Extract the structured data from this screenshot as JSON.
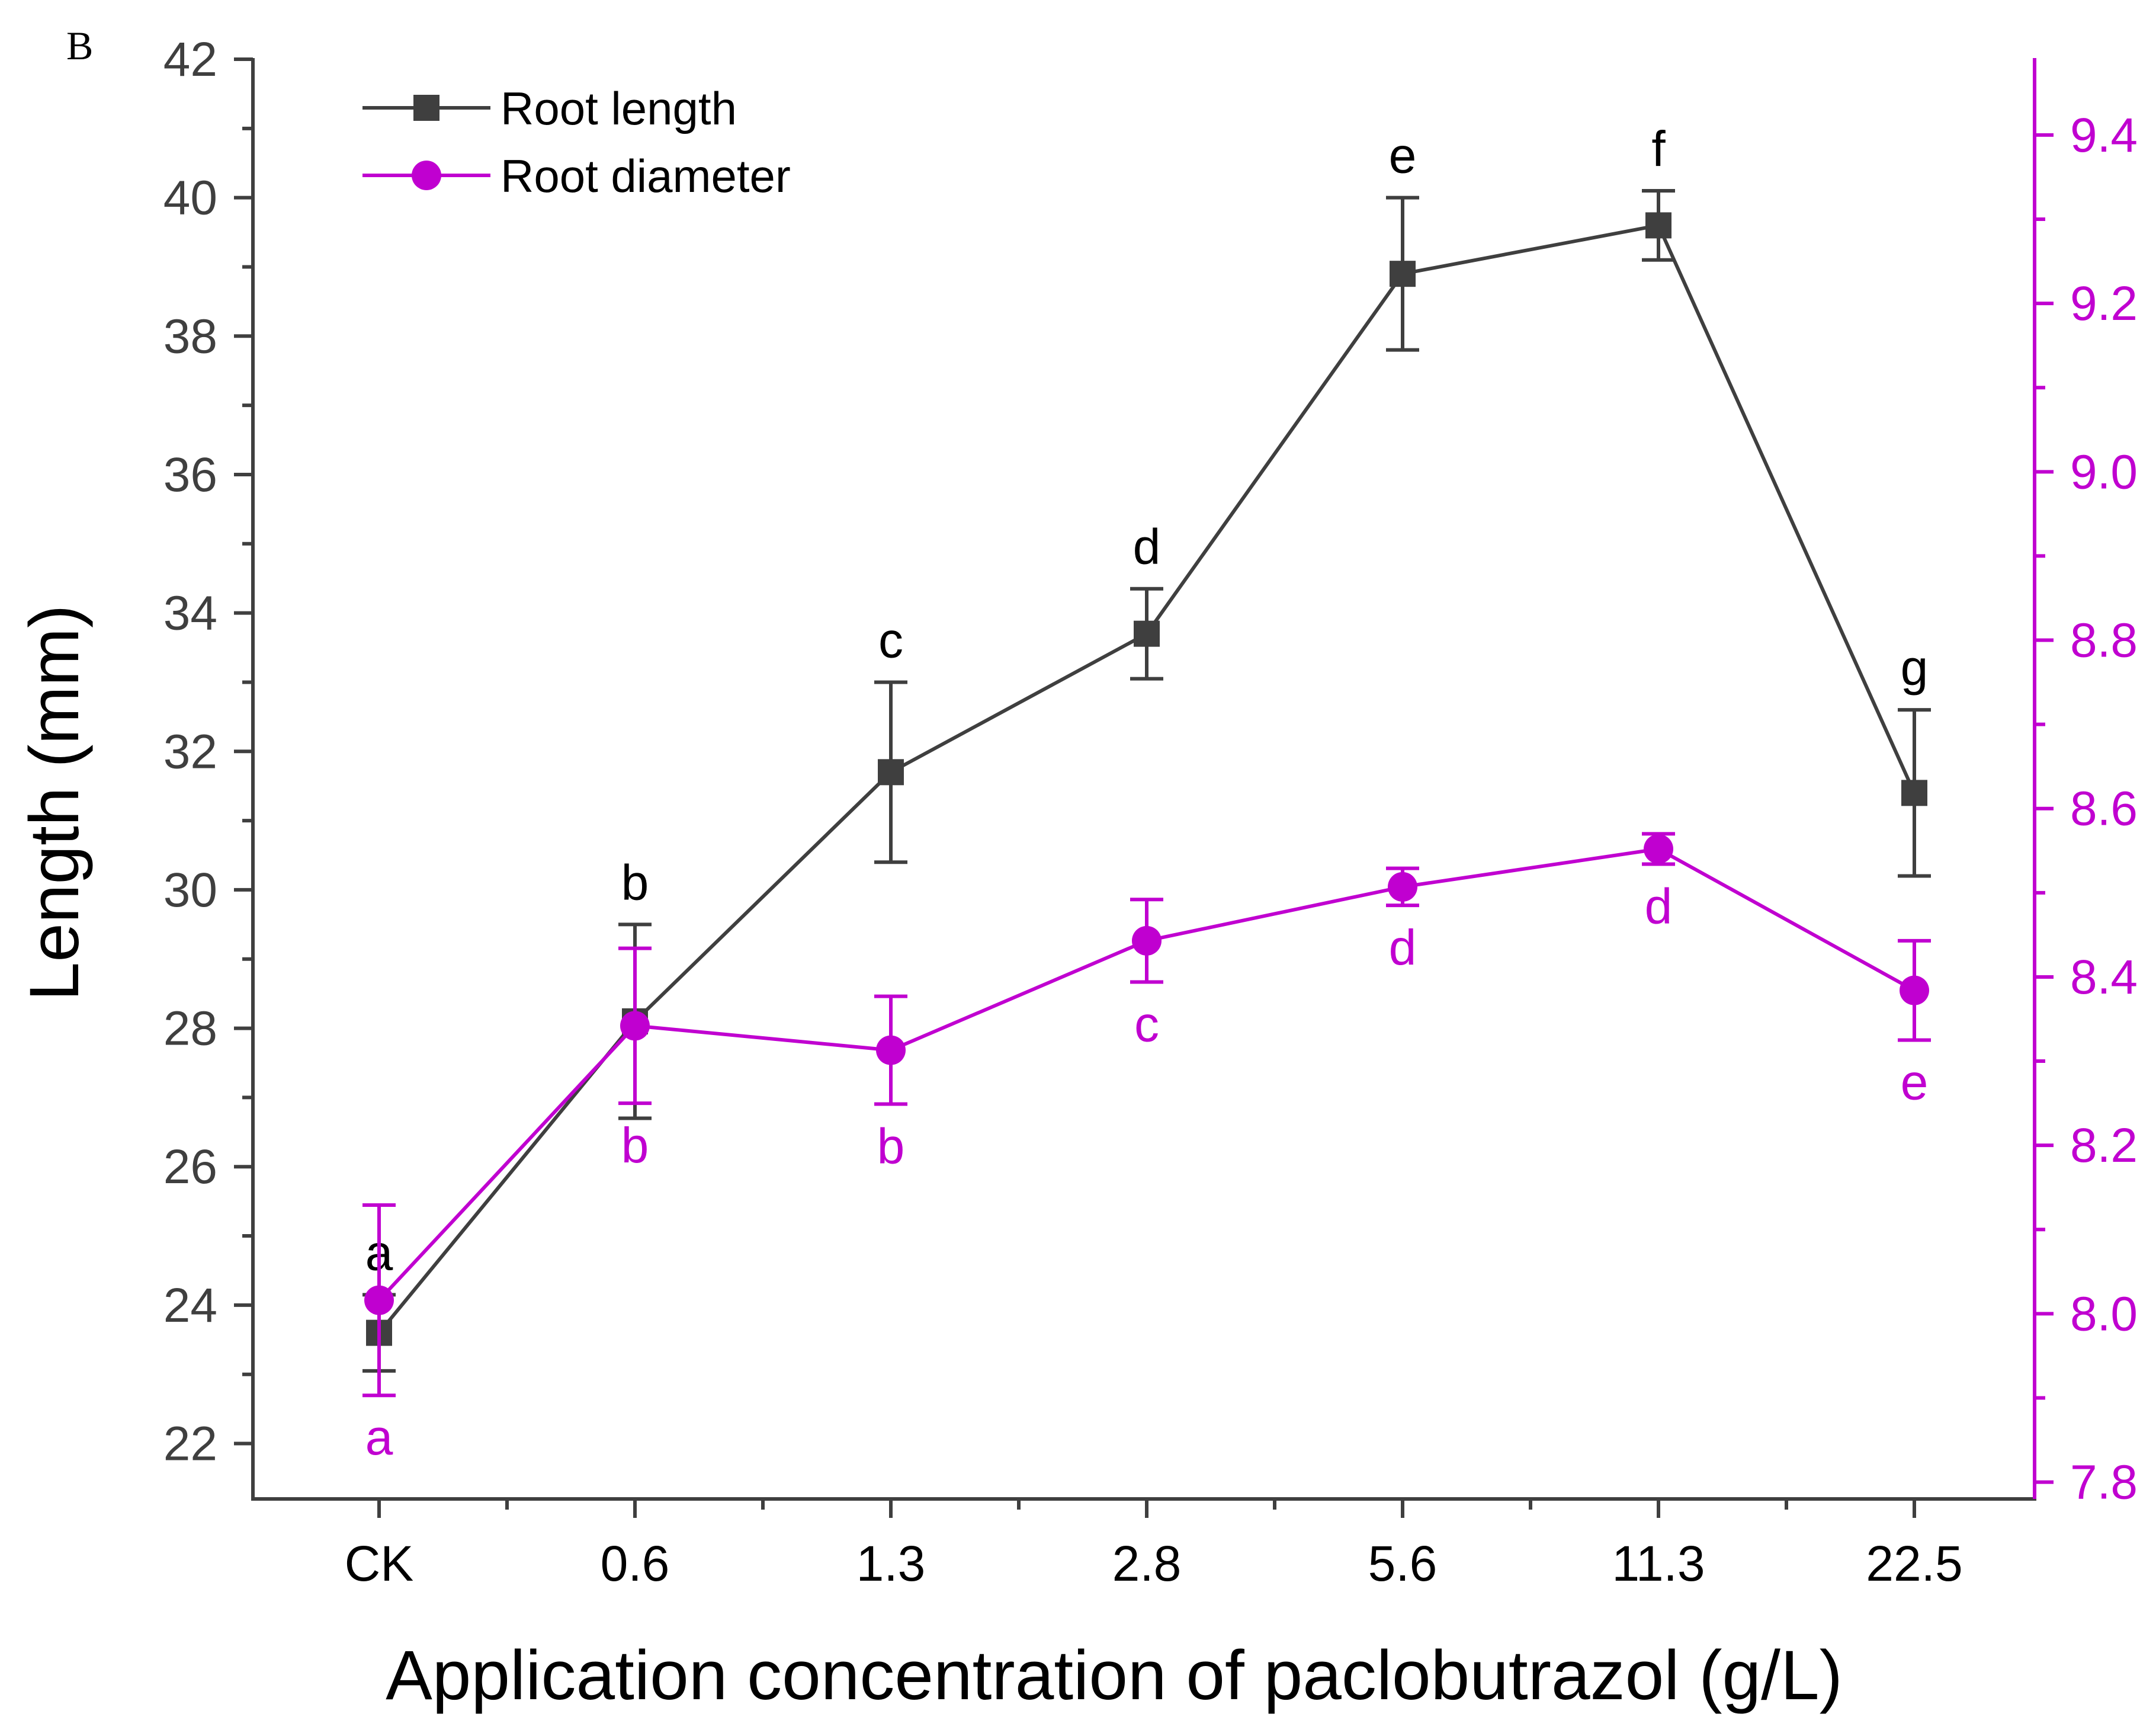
{
  "panel_label": "B",
  "colors": {
    "length": "#3f3f3f",
    "diameter": "#c000d0",
    "axis": "#3f3f3f",
    "letters_length": "#000000"
  },
  "chart_data": {
    "type": "line",
    "xlabel": "Application concentration of paclobutrazol (g/L)",
    "ylabel": "Length (mm)",
    "categories": [
      "CK",
      "0.6",
      "1.3",
      "2.8",
      "5.6",
      "11.3",
      "22.5"
    ],
    "y_left": {
      "lim": [
        21.2,
        42
      ],
      "ticks": [
        22,
        24,
        26,
        28,
        30,
        32,
        34,
        36,
        38,
        40,
        42
      ],
      "tick_labels": [
        "22",
        "24",
        "26",
        "28",
        "30",
        "32",
        "34",
        "36",
        "38",
        "40",
        "42"
      ]
    },
    "y_right": {
      "lim": [
        7.78,
        9.49
      ],
      "ticks": [
        7.8,
        8.0,
        8.2,
        8.4,
        8.6,
        8.8,
        9.0,
        9.2,
        9.4
      ],
      "tick_labels": [
        "7.8",
        "8.0",
        "8.2",
        "8.4",
        "8.6",
        "8.8",
        "9.0",
        "9.2",
        "9.4"
      ]
    },
    "legend_position": "top-left",
    "series": [
      {
        "name": "Root length",
        "axis": "left",
        "marker": "square",
        "values": [
          23.6,
          28.1,
          31.7,
          33.7,
          38.9,
          39.6,
          31.4
        ],
        "errors": [
          0.55,
          1.4,
          1.3,
          0.65,
          1.1,
          0.5,
          1.2
        ],
        "letters": [
          "a",
          "b",
          "c",
          "d",
          "e",
          "f",
          "g"
        ]
      },
      {
        "name": "Root diameter",
        "axis": "right",
        "marker": "circle",
        "values": [
          8.016,
          8.342,
          8.313,
          8.443,
          8.507,
          8.552,
          8.384
        ],
        "errors": [
          0.113,
          0.092,
          0.064,
          0.049,
          0.022,
          0.018,
          0.059
        ],
        "letters": [
          "a",
          "b",
          "b",
          "c",
          "d",
          "d",
          "e"
        ]
      }
    ]
  }
}
